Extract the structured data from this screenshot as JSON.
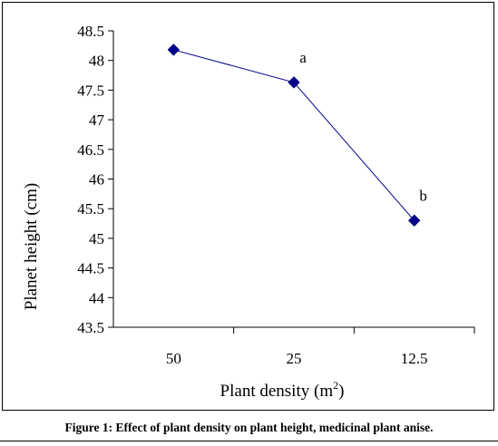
{
  "chart_data": {
    "type": "line",
    "title": "",
    "xlabel": "Plant density (m",
    "xlabel_superscript": "2",
    "xlabel_suffix": ")",
    "ylabel": "Planet height (cm)",
    "categories": [
      "50",
      "25",
      "12.5"
    ],
    "series": [
      {
        "values": [
          48.18,
          47.63,
          45.3
        ],
        "color": "#00008B"
      }
    ],
    "annotations": [
      {
        "category": "25",
        "text": "a"
      },
      {
        "category": "12.5",
        "text": "b"
      }
    ],
    "ylim": [
      43.5,
      48.5
    ],
    "yticks": [
      "48.5",
      "48",
      "47.5",
      "47",
      "46.5",
      "46",
      "45.5",
      "45",
      "44.5",
      "44",
      "43.5"
    ],
    "grid": false,
    "legend": false
  },
  "caption": "Figure 1: Effect of plant density on plant height, medicinal plant anise."
}
